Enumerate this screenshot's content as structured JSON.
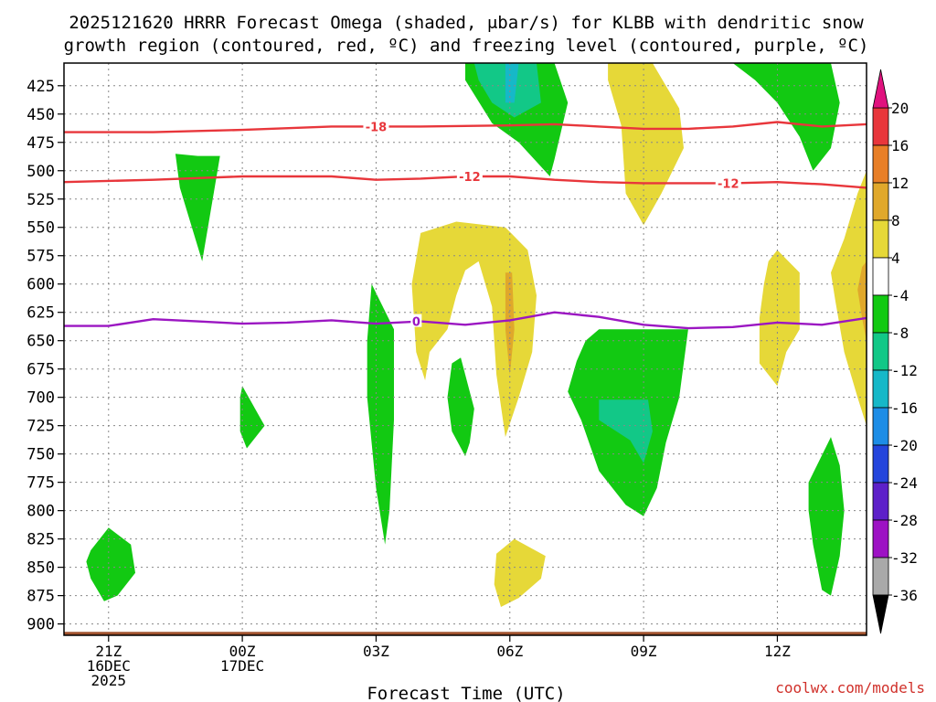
{
  "chart_data": {
    "type": "heatmap",
    "title_lines": [
      "2025121620 HRRR Forecast Omega (shaded, μbar/s) for KLBB with dendritic snow",
      "growth region (contoured, red, ºC) and freezing level (contoured, purple, ºC)"
    ],
    "xlabel": "Forecast Time (UTC)",
    "credit": "coolwx.com/models",
    "x_range_hours": [
      20,
      38
    ],
    "x_ticks": [
      {
        "hour": 21,
        "label": "21Z",
        "line2": "16DEC",
        "line3": "2025"
      },
      {
        "hour": 24,
        "label": "00Z",
        "line2": "17DEC",
        "line3": ""
      },
      {
        "hour": 27,
        "label": "03Z",
        "line2": "",
        "line3": ""
      },
      {
        "hour": 30,
        "label": "06Z",
        "line2": "",
        "line3": ""
      },
      {
        "hour": 33,
        "label": "09Z",
        "line2": "",
        "line3": ""
      },
      {
        "hour": 36,
        "label": "12Z",
        "line2": "",
        "line3": ""
      }
    ],
    "y_range_mb": [
      405,
      910
    ],
    "y_ticks": [
      425,
      450,
      475,
      500,
      525,
      550,
      575,
      600,
      625,
      650,
      675,
      700,
      725,
      750,
      775,
      800,
      825,
      850,
      875,
      900
    ],
    "surface_pressure_mb": 907,
    "colorbar": {
      "labels": [
        "20",
        "16",
        "12",
        "8",
        "4",
        "-4",
        "-8",
        "-12",
        "-16",
        "-20",
        "-24",
        "-28",
        "-32",
        "-36"
      ],
      "bands": [
        {
          "lo": 16,
          "hi": 20,
          "color": "#e8363b"
        },
        {
          "lo": 12,
          "hi": 16,
          "color": "#e87f27"
        },
        {
          "lo": 8,
          "hi": 12,
          "color": "#e0a82b"
        },
        {
          "lo": 4,
          "hi": 8,
          "color": "#e6d838"
        },
        {
          "lo": -4,
          "hi": 4,
          "color": "#ffffff"
        },
        {
          "lo": -8,
          "hi": -4,
          "color": "#12c912"
        },
        {
          "lo": -12,
          "hi": -8,
          "color": "#12c887"
        },
        {
          "lo": -16,
          "hi": -12,
          "color": "#16b8c8"
        },
        {
          "lo": -20,
          "hi": -16,
          "color": "#1d8de6"
        },
        {
          "lo": -24,
          "hi": -20,
          "color": "#2445dc"
        },
        {
          "lo": -28,
          "hi": -24,
          "color": "#5d20c9"
        },
        {
          "lo": -32,
          "hi": -28,
          "color": "#9d12c4"
        },
        {
          "lo": -36,
          "hi": -32,
          "color": "#a9a9a9"
        }
      ],
      "top_arrow_color": "#e0127e",
      "bottom_arrow_color": "#000000"
    },
    "omega_regions": [
      {
        "name": "green-plume-top-center",
        "color": "#12c912",
        "pts": [
          [
            29.0,
            405
          ],
          [
            31.0,
            405
          ],
          [
            31.3,
            440
          ],
          [
            31.0,
            490
          ],
          [
            30.9,
            505
          ],
          [
            30.2,
            475
          ],
          [
            29.6,
            458
          ],
          [
            29.0,
            420
          ]
        ]
      },
      {
        "name": "teal-plume-top-center",
        "color": "#12c887",
        "pts": [
          [
            29.2,
            405
          ],
          [
            30.6,
            405
          ],
          [
            30.7,
            440
          ],
          [
            30.1,
            453
          ],
          [
            29.6,
            440
          ],
          [
            29.3,
            420
          ]
        ]
      },
      {
        "name": "cyan-core-top-center",
        "color": "#16b8c8",
        "pts": [
          [
            29.9,
            405
          ],
          [
            30.2,
            405
          ],
          [
            30.1,
            440
          ],
          [
            29.9,
            440
          ]
        ]
      },
      {
        "name": "yellow-plume-top",
        "color": "#e6d838",
        "pts": [
          [
            32.2,
            405
          ],
          [
            33.2,
            405
          ],
          [
            33.8,
            445
          ],
          [
            33.9,
            480
          ],
          [
            33.4,
            520
          ],
          [
            33.0,
            548
          ],
          [
            32.6,
            520
          ],
          [
            32.5,
            460
          ],
          [
            32.2,
            420
          ]
        ]
      },
      {
        "name": "green-plume-top-right",
        "color": "#12c912",
        "pts": [
          [
            35.0,
            405
          ],
          [
            37.2,
            405
          ],
          [
            37.4,
            440
          ],
          [
            37.2,
            480
          ],
          [
            36.8,
            500
          ],
          [
            36.5,
            470
          ],
          [
            36.0,
            440
          ],
          [
            35.5,
            420
          ]
        ]
      },
      {
        "name": "green-small-mid-left",
        "color": "#12c912",
        "pts": [
          [
            23.0,
            487
          ],
          [
            23.5,
            487
          ],
          [
            23.1,
            580
          ],
          [
            22.6,
            515
          ],
          [
            22.5,
            485
          ]
        ]
      },
      {
        "name": "yellow-large-mid",
        "color": "#e6d838",
        "pts": [
          [
            28.0,
            555
          ],
          [
            28.8,
            545
          ],
          [
            29.9,
            550
          ],
          [
            30.4,
            570
          ],
          [
            30.6,
            610
          ],
          [
            30.5,
            660
          ],
          [
            30.2,
            700
          ],
          [
            29.9,
            735
          ],
          [
            29.7,
            680
          ],
          [
            29.6,
            620
          ],
          [
            29.3,
            580
          ],
          [
            29.0,
            588
          ],
          [
            28.8,
            610
          ],
          [
            28.6,
            640
          ],
          [
            28.2,
            660
          ],
          [
            28.1,
            685
          ],
          [
            27.9,
            660
          ],
          [
            27.8,
            600
          ]
        ]
      },
      {
        "name": "orange-streak-mid",
        "color": "#e0a82b",
        "pts": [
          [
            29.9,
            590
          ],
          [
            30.05,
            590
          ],
          [
            30.1,
            640
          ],
          [
            30.0,
            680
          ],
          [
            29.9,
            640
          ]
        ]
      },
      {
        "name": "green-thin-center",
        "color": "#12c912",
        "pts": [
          [
            26.9,
            600
          ],
          [
            27.4,
            640
          ],
          [
            27.4,
            720
          ],
          [
            27.3,
            800
          ],
          [
            27.2,
            830
          ],
          [
            27.0,
            780
          ],
          [
            26.8,
            700
          ],
          [
            26.8,
            650
          ]
        ]
      },
      {
        "name": "green-small-center",
        "color": "#12c912",
        "pts": [
          [
            28.9,
            665
          ],
          [
            29.2,
            710
          ],
          [
            29.1,
            740
          ],
          [
            29.0,
            752
          ],
          [
            28.7,
            730
          ],
          [
            28.6,
            700
          ],
          [
            28.7,
            670
          ]
        ]
      },
      {
        "name": "green-large-lower-mid",
        "color": "#12c912",
        "pts": [
          [
            32.0,
            640
          ],
          [
            34.0,
            640
          ],
          [
            33.8,
            700
          ],
          [
            33.5,
            740
          ],
          [
            33.3,
            780
          ],
          [
            33.0,
            805
          ],
          [
            32.6,
            795
          ],
          [
            32.0,
            765
          ],
          [
            31.6,
            720
          ],
          [
            31.3,
            695
          ],
          [
            31.5,
            668
          ],
          [
            31.7,
            650
          ]
        ]
      },
      {
        "name": "teal-core-lower-mid",
        "color": "#12c887",
        "pts": [
          [
            32.0,
            702
          ],
          [
            33.1,
            702
          ],
          [
            33.2,
            730
          ],
          [
            33.0,
            758
          ],
          [
            32.7,
            738
          ],
          [
            32.0,
            720
          ]
        ]
      },
      {
        "name": "green-small-left-mid",
        "color": "#12c912",
        "pts": [
          [
            24.0,
            690
          ],
          [
            24.5,
            725
          ],
          [
            24.1,
            745
          ],
          [
            23.95,
            730
          ],
          [
            23.95,
            700
          ]
        ]
      },
      {
        "name": "green-bottom-left",
        "color": "#12c912",
        "pts": [
          [
            20.6,
            835
          ],
          [
            21.0,
            815
          ],
          [
            21.5,
            830
          ],
          [
            21.6,
            855
          ],
          [
            21.2,
            875
          ],
          [
            20.9,
            880
          ],
          [
            20.6,
            860
          ],
          [
            20.5,
            845
          ]
        ]
      },
      {
        "name": "yellow-small-bottom",
        "color": "#e6d838",
        "pts": [
          [
            29.7,
            838
          ],
          [
            30.1,
            825
          ],
          [
            30.8,
            840
          ],
          [
            30.7,
            860
          ],
          [
            30.2,
            877
          ],
          [
            29.8,
            885
          ],
          [
            29.65,
            865
          ]
        ]
      },
      {
        "name": "yellow-right-mid",
        "color": "#e6d838",
        "pts": [
          [
            36.0,
            570
          ],
          [
            36.5,
            590
          ],
          [
            36.5,
            640
          ],
          [
            36.2,
            660
          ],
          [
            36.0,
            690
          ],
          [
            35.6,
            670
          ],
          [
            35.6,
            630
          ],
          [
            35.7,
            600
          ],
          [
            35.8,
            580
          ]
        ]
      },
      {
        "name": "yellow-right-edge",
        "color": "#e6d838",
        "pts": [
          [
            38.0,
            500
          ],
          [
            38.0,
            725
          ],
          [
            37.8,
            700
          ],
          [
            37.5,
            660
          ],
          [
            37.3,
            615
          ],
          [
            37.2,
            590
          ],
          [
            37.5,
            560
          ],
          [
            37.8,
            520
          ]
        ]
      },
      {
        "name": "orange-right-edge",
        "color": "#e0a82b",
        "pts": [
          [
            38.0,
            580
          ],
          [
            38.0,
            650
          ],
          [
            37.9,
            630
          ],
          [
            37.8,
            605
          ],
          [
            37.9,
            585
          ]
        ]
      },
      {
        "name": "green-bottom-right",
        "color": "#12c912",
        "pts": [
          [
            36.7,
            775
          ],
          [
            37.2,
            735
          ],
          [
            37.4,
            760
          ],
          [
            37.5,
            800
          ],
          [
            37.4,
            840
          ],
          [
            37.2,
            875
          ],
          [
            37.0,
            870
          ],
          [
            36.8,
            830
          ],
          [
            36.7,
            800
          ]
        ]
      }
    ],
    "isotherms": [
      {
        "name": "-18",
        "label": "-18",
        "color": "#e8363b",
        "points": [
          [
            20,
            466
          ],
          [
            22,
            466
          ],
          [
            24,
            464
          ],
          [
            26,
            461
          ],
          [
            28,
            461
          ],
          [
            30,
            460
          ],
          [
            31,
            459
          ],
          [
            32,
            461
          ],
          [
            33,
            463
          ],
          [
            34,
            463
          ],
          [
            35,
            461
          ],
          [
            36,
            457
          ],
          [
            36.5,
            459
          ],
          [
            37,
            461
          ],
          [
            38,
            459
          ]
        ],
        "label_at": [
          27.0,
          461
        ]
      },
      {
        "name": "-12",
        "label": "-12",
        "color": "#e8363b",
        "points": [
          [
            20,
            510
          ],
          [
            22,
            508
          ],
          [
            24,
            505
          ],
          [
            26,
            505
          ],
          [
            27,
            508
          ],
          [
            28,
            507
          ],
          [
            29,
            505
          ],
          [
            30,
            505
          ],
          [
            31,
            508
          ],
          [
            32,
            510
          ],
          [
            33,
            511
          ],
          [
            34,
            511
          ],
          [
            35,
            511
          ],
          [
            36,
            510
          ],
          [
            37,
            512
          ],
          [
            38,
            515
          ]
        ],
        "label_at": [
          29.1,
          505
        ]
      },
      {
        "name": "-12-b",
        "label": "-12",
        "color": "#e8363b",
        "points": [],
        "label_at": [
          34.9,
          511
        ]
      },
      {
        "name": "0",
        "label": "0",
        "color": "#9b16c2",
        "points": [
          [
            20,
            637
          ],
          [
            21,
            637
          ],
          [
            22,
            631
          ],
          [
            23,
            633
          ],
          [
            24,
            635
          ],
          [
            25,
            634
          ],
          [
            26,
            632
          ],
          [
            27,
            635
          ],
          [
            28,
            633
          ],
          [
            29,
            636
          ],
          [
            30,
            632
          ],
          [
            31,
            625
          ],
          [
            32,
            629
          ],
          [
            33,
            636
          ],
          [
            34,
            639
          ],
          [
            35,
            638
          ],
          [
            36,
            634
          ],
          [
            37,
            636
          ],
          [
            38,
            630
          ]
        ],
        "label_at": [
          27.9,
          633
        ]
      }
    ]
  }
}
